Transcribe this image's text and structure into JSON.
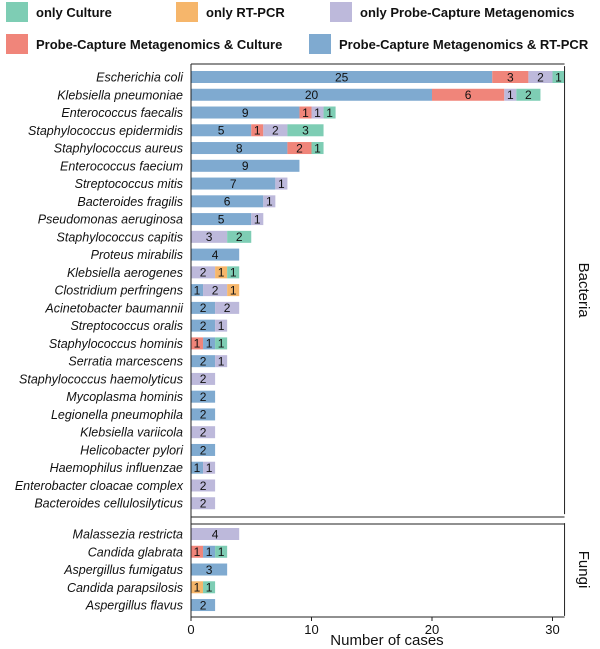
{
  "chart_data": {
    "type": "bar",
    "orientation": "horizontal",
    "stacked": true,
    "xlabel": "Number of cases",
    "xlim": [
      0,
      31
    ],
    "x_ticks": [
      0,
      10,
      20,
      30
    ],
    "grid": false,
    "legend_placement": "top",
    "legend": [
      {
        "key": "only_culture",
        "label": "only Culture",
        "color": "#7ECDB4"
      },
      {
        "key": "only_rtpcr",
        "label": "only RT-PCR",
        "color": "#F6B66B"
      },
      {
        "key": "only_pcm",
        "label": "only Probe-Capture Metagenomics",
        "color": "#BDB9DB"
      },
      {
        "key": "pcm_culture",
        "label": "Probe-Capture Metagenomics & Culture",
        "color": "#F0857A"
      },
      {
        "key": "pcm_rtpcr",
        "label": "Probe-Capture Metagenomics & RT-PCR",
        "color": "#7FAAD0"
      }
    ],
    "groups": [
      {
        "name": "Bacteria",
        "rows": [
          {
            "label": "Escherichia coli",
            "segments": [
              {
                "k": "pcm_rtpcr",
                "v": 25
              },
              {
                "k": "pcm_culture",
                "v": 3
              },
              {
                "k": "only_pcm",
                "v": 2
              },
              {
                "k": "only_culture",
                "v": 1
              }
            ]
          },
          {
            "label": "Klebsiella pneumoniae",
            "segments": [
              {
                "k": "pcm_rtpcr",
                "v": 20
              },
              {
                "k": "pcm_culture",
                "v": 6
              },
              {
                "k": "only_pcm",
                "v": 1
              },
              {
                "k": "only_culture",
                "v": 2
              }
            ]
          },
          {
            "label": "Enterococcus faecalis",
            "segments": [
              {
                "k": "pcm_rtpcr",
                "v": 9
              },
              {
                "k": "pcm_culture",
                "v": 1
              },
              {
                "k": "only_pcm",
                "v": 1
              },
              {
                "k": "only_culture",
                "v": 1
              }
            ]
          },
          {
            "label": "Staphylococcus epidermidis",
            "segments": [
              {
                "k": "pcm_rtpcr",
                "v": 5
              },
              {
                "k": "pcm_culture",
                "v": 1
              },
              {
                "k": "only_pcm",
                "v": 2
              },
              {
                "k": "only_culture",
                "v": 3
              }
            ]
          },
          {
            "label": "Staphylococcus aureus",
            "segments": [
              {
                "k": "pcm_rtpcr",
                "v": 8
              },
              {
                "k": "pcm_culture",
                "v": 2
              },
              {
                "k": "only_culture",
                "v": 1
              }
            ]
          },
          {
            "label": "Enterococcus faecium",
            "segments": [
              {
                "k": "pcm_rtpcr",
                "v": 9
              }
            ]
          },
          {
            "label": "Streptococcus mitis",
            "segments": [
              {
                "k": "pcm_rtpcr",
                "v": 7
              },
              {
                "k": "only_pcm",
                "v": 1
              }
            ]
          },
          {
            "label": "Bacteroides fragilis",
            "segments": [
              {
                "k": "pcm_rtpcr",
                "v": 6
              },
              {
                "k": "only_pcm",
                "v": 1
              }
            ]
          },
          {
            "label": "Pseudomonas aeruginosa",
            "segments": [
              {
                "k": "pcm_rtpcr",
                "v": 5
              },
              {
                "k": "only_pcm",
                "v": 1
              }
            ]
          },
          {
            "label": "Staphylococcus capitis",
            "segments": [
              {
                "k": "only_pcm",
                "v": 3
              },
              {
                "k": "only_culture",
                "v": 2
              }
            ]
          },
          {
            "label": "Proteus mirabilis",
            "segments": [
              {
                "k": "pcm_rtpcr",
                "v": 4
              }
            ]
          },
          {
            "label": "Klebsiella aerogenes",
            "segments": [
              {
                "k": "only_pcm",
                "v": 2
              },
              {
                "k": "only_rtpcr",
                "v": 1
              },
              {
                "k": "only_culture",
                "v": 1
              }
            ]
          },
          {
            "label": "Clostridium perfringens",
            "segments": [
              {
                "k": "pcm_rtpcr",
                "v": 1
              },
              {
                "k": "only_pcm",
                "v": 2
              },
              {
                "k": "only_rtpcr",
                "v": 1
              }
            ]
          },
          {
            "label": "Acinetobacter baumannii",
            "segments": [
              {
                "k": "pcm_rtpcr",
                "v": 2
              },
              {
                "k": "only_pcm",
                "v": 2
              }
            ]
          },
          {
            "label": "Streptococcus oralis",
            "segments": [
              {
                "k": "pcm_rtpcr",
                "v": 2
              },
              {
                "k": "only_pcm",
                "v": 1
              }
            ]
          },
          {
            "label": "Staphylococcus hominis",
            "segments": [
              {
                "k": "pcm_culture",
                "v": 1
              },
              {
                "k": "pcm_rtpcr",
                "v": 1
              },
              {
                "k": "only_culture",
                "v": 1
              }
            ]
          },
          {
            "label": "Serratia marcescens",
            "segments": [
              {
                "k": "pcm_rtpcr",
                "v": 2
              },
              {
                "k": "only_pcm",
                "v": 1
              }
            ]
          },
          {
            "label": "Staphylococcus haemolyticus",
            "segments": [
              {
                "k": "only_pcm",
                "v": 2
              }
            ]
          },
          {
            "label": "Mycoplasma hominis",
            "segments": [
              {
                "k": "pcm_rtpcr",
                "v": 2
              }
            ]
          },
          {
            "label": "Legionella pneumophila",
            "segments": [
              {
                "k": "pcm_rtpcr",
                "v": 2
              }
            ]
          },
          {
            "label": "Klebsiella variicola",
            "segments": [
              {
                "k": "only_pcm",
                "v": 2
              }
            ]
          },
          {
            "label": "Helicobacter pylori",
            "segments": [
              {
                "k": "pcm_rtpcr",
                "v": 2
              }
            ]
          },
          {
            "label": "Haemophilus influenzae",
            "segments": [
              {
                "k": "pcm_rtpcr",
                "v": 1
              },
              {
                "k": "only_pcm",
                "v": 1
              }
            ]
          },
          {
            "label": "Enterobacter cloacae complex",
            "segments": [
              {
                "k": "only_pcm",
                "v": 2
              }
            ]
          },
          {
            "label": "Bacteroides cellulosilyticus",
            "segments": [
              {
                "k": "only_pcm",
                "v": 2
              }
            ]
          }
        ]
      },
      {
        "name": "Fungi",
        "rows": [
          {
            "label": "Malassezia restricta",
            "segments": [
              {
                "k": "only_pcm",
                "v": 4
              }
            ]
          },
          {
            "label": "Candida glabrata",
            "segments": [
              {
                "k": "pcm_culture",
                "v": 1
              },
              {
                "k": "pcm_rtpcr",
                "v": 1
              },
              {
                "k": "only_culture",
                "v": 1
              }
            ]
          },
          {
            "label": "Aspergillus fumigatus",
            "segments": [
              {
                "k": "pcm_rtpcr",
                "v": 3
              }
            ]
          },
          {
            "label": "Candida parapsilosis",
            "segments": [
              {
                "k": "only_rtpcr",
                "v": 1
              },
              {
                "k": "only_culture",
                "v": 1
              }
            ]
          },
          {
            "label": "Aspergillus flavus",
            "segments": [
              {
                "k": "pcm_rtpcr",
                "v": 2
              }
            ]
          }
        ]
      }
    ]
  }
}
